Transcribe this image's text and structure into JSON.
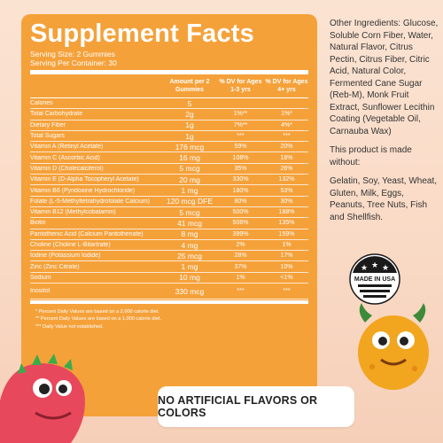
{
  "facts": {
    "title": "Supplement Facts",
    "serving_size": "Serving Size: 2 Gummies",
    "servings_per_container": "Serving Per Container: 30",
    "headers": [
      "Amount per 2 Gummies",
      "% DV for Ages 1-3 yrs",
      "% DV for Ages 4+ yrs"
    ],
    "rows": [
      {
        "name": "Calories",
        "amount": "5",
        "dv1": "",
        "dv2": ""
      },
      {
        "name": "Total Carbohydrate",
        "amount": "2g",
        "dv1": "1%**",
        "dv2": "1%*"
      },
      {
        "name": "Dietary Fiber",
        "amount": "1g",
        "dv1": "7%**",
        "dv2": "4%*"
      },
      {
        "name": "Total Sugars",
        "amount": "1g",
        "dv1": "***",
        "dv2": "***"
      },
      {
        "name": "Vitamin A (Retinyl Acetate)",
        "amount": "176 mcg",
        "dv1": "59%",
        "dv2": "20%"
      },
      {
        "name": "Vitamin C (Ascorbic Acid)",
        "amount": "16 mg",
        "dv1": "108%",
        "dv2": "18%"
      },
      {
        "name": "Vitamin D (Cholecalciferol)",
        "amount": "5 mcg",
        "dv1": "35%",
        "dv2": "26%"
      },
      {
        "name": "Vitamin E (D-Alpha Tocopheryl Acetate)",
        "amount": "20 mg",
        "dv1": "330%",
        "dv2": "132%"
      },
      {
        "name": "Vitamin B6 (Pyridoxine Hydrochloride)",
        "amount": "1 mg",
        "dv1": "180%",
        "dv2": "53%"
      },
      {
        "name": "Folate (L-5-Methyltetrahydrofolate Calcium)",
        "amount": "120 mcg DFE",
        "dv1": "80%",
        "dv2": "30%"
      },
      {
        "name": "Vitamin B12 (Methylcobalamin)",
        "amount": "5 mcg",
        "dv1": "500%",
        "dv2": "188%"
      },
      {
        "name": "Biotin",
        "amount": "41 mcg",
        "dv1": "506%",
        "dv2": "135%"
      },
      {
        "name": "Pantothenic Acid (Calcium Pantothenate)",
        "amount": "8 mg",
        "dv1": "399%",
        "dv2": "159%"
      },
      {
        "name": "Choline (Choline L-Bitartrate)",
        "amount": "4 mg",
        "dv1": "2%",
        "dv2": "1%"
      },
      {
        "name": "Iodine (Potassium Iodide)",
        "amount": "25 mcg",
        "dv1": "28%",
        "dv2": "17%"
      },
      {
        "name": "Zinc (Zinc Citrate)",
        "amount": "1 mg",
        "dv1": "37%",
        "dv2": "10%"
      },
      {
        "name": "Sodium",
        "amount": "10 mg",
        "dv1": "1%",
        "dv2": "<1%"
      },
      {
        "name": "Inositol",
        "amount": "330 mcg",
        "dv1": "***",
        "dv2": "***"
      }
    ],
    "notes": [
      "* Percent Daily Values are based on a 2,000 calorie diet.",
      "** Percent Daily Values are based on a 1,000 calorie diet.",
      "*** Daily Value not established."
    ]
  },
  "other_ingredients": "Other Ingredients: Glucose, Soluble Corn Fiber, Water, Natural Flavor, Citrus Pectin, Citrus Fiber, Citric Acid, Natural Color, Fermented Cane Sugar (Reb-M), Monk Fruit Extract, Sunflower Lecithin Coating (Vegetable Oil, Carnauba Wax)",
  "made_without_intro": "This product is made without:",
  "made_without_list": "Gelatin, Soy, Yeast, Wheat, Gluten, Milk, Eggs, Peanuts, Tree Nuts, Fish and Shellfish.",
  "badge_text": "MADE IN USA",
  "banner_text": "NO ARTIFICIAL FLAVORS OR COLORS",
  "colors": {
    "panel": "#f5a13a",
    "background": "#fbe3d2",
    "dino": "#e8485c",
    "monster": "#f2a51e"
  }
}
